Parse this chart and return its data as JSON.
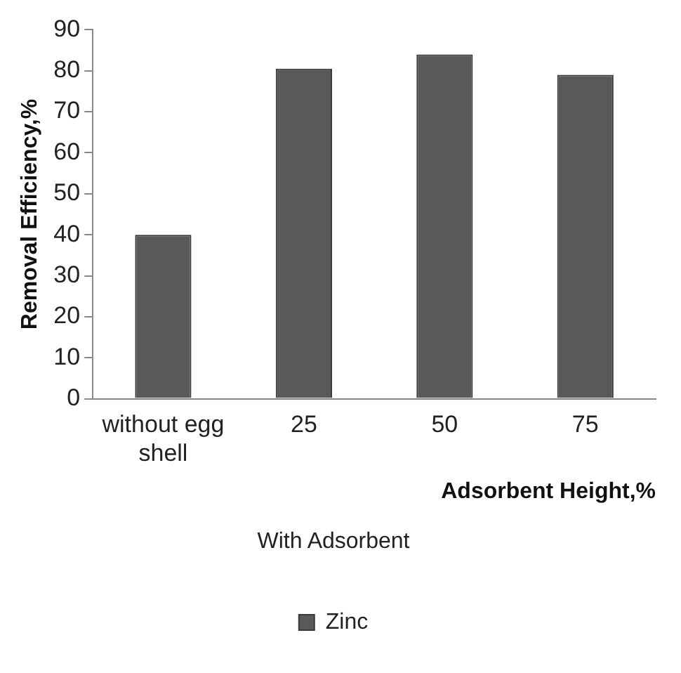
{
  "chart_data": {
    "type": "bar",
    "categories": [
      "without egg shell",
      "25",
      "50",
      "75"
    ],
    "series": [
      {
        "name": "Zinc",
        "color": "#595959",
        "values": [
          40,
          80.5,
          84,
          79
        ]
      }
    ],
    "xlabel": "Adsorbent Height,%",
    "ylabel": "Removal Efficiency,%",
    "annotations": [
      "With Adsorbent"
    ],
    "ylim": [
      0,
      90
    ],
    "yticks": [
      0,
      10,
      20,
      30,
      40,
      50,
      60,
      70,
      80,
      90
    ],
    "grid": false,
    "legend": "bottom"
  }
}
